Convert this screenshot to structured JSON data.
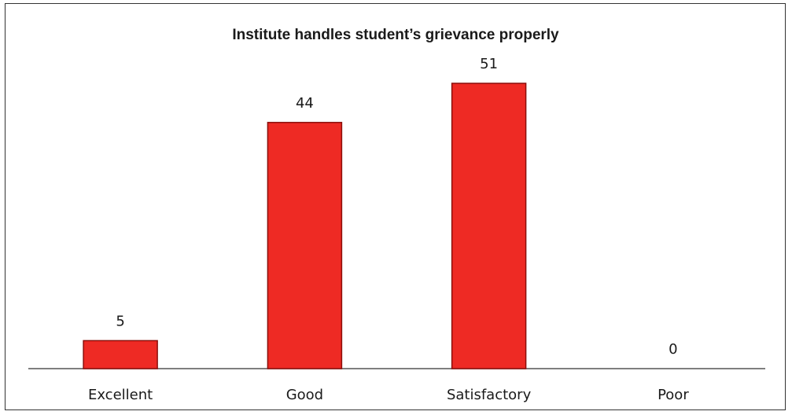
{
  "chart_data": {
    "type": "bar",
    "title": "Institute handles student’s grievance properly",
    "categories": [
      "Excellent",
      "Good",
      "Satisfactory",
      "Poor"
    ],
    "values": [
      5,
      44,
      51,
      0
    ],
    "xlabel": "",
    "ylabel": "",
    "ylim": [
      0,
      51
    ],
    "grid": false,
    "legend": "none",
    "data_labels": true,
    "colors": {
      "bar_fill": "#ee2a24",
      "bar_stroke": "#8a0e0b",
      "axis": "#555555",
      "frame": "#333333",
      "text": "#1a1a1a"
    }
  }
}
